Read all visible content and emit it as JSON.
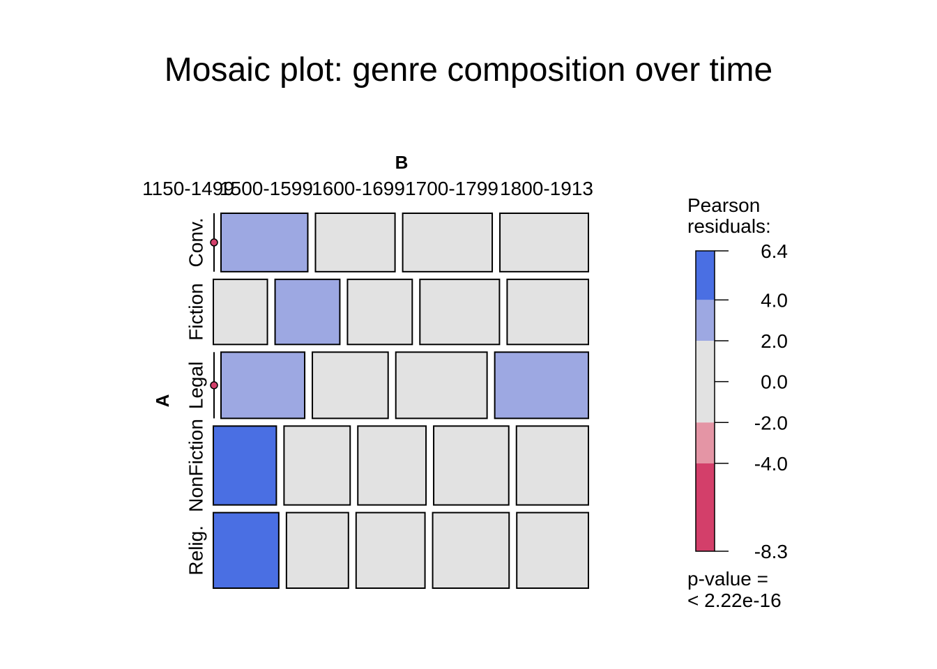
{
  "chart_data": {
    "type": "mosaic",
    "title": "Mosaic plot: genre composition over time",
    "column_variable": "B",
    "row_variable": "A",
    "columns": [
      "1150-1499",
      "1500-1599",
      "1600-1699",
      "1700-1799",
      "1800-1913"
    ],
    "rows": [
      "Conv.",
      "Fiction",
      "Legal",
      "NonFiction",
      "Relig."
    ],
    "row_shares": [
      0.157,
      0.175,
      0.178,
      0.212,
      0.203
    ],
    "cell_shares": [
      [
        0.0,
        0.252,
        0.231,
        0.26,
        0.257
      ],
      [
        0.157,
        0.188,
        0.188,
        0.231,
        0.236
      ],
      [
        0.0,
        0.243,
        0.22,
        0.265,
        0.272
      ],
      [
        0.183,
        0.192,
        0.198,
        0.218,
        0.209
      ],
      [
        0.19,
        0.18,
        0.2,
        0.222,
        0.208
      ]
    ],
    "residuals": [
      [
        0,
        3,
        0,
        0,
        0
      ],
      [
        0,
        3,
        0,
        0,
        0
      ],
      [
        0,
        3,
        0,
        0,
        3
      ],
      [
        6,
        0,
        0,
        0,
        0
      ],
      [
        6,
        0,
        0,
        0,
        0
      ]
    ],
    "legend": {
      "title": "Pearson\nresiduals:",
      "ticks": [
        "6.4",
        "4.0",
        "2.0",
        "0.0",
        "-2.0",
        "-4.0",
        "-8.3"
      ],
      "tick_values": [
        6.4,
        4.0,
        2.0,
        0.0,
        -2.0,
        -4.0,
        -8.3
      ],
      "bands": [
        {
          "from": 4.0,
          "to": 6.4,
          "color": "#4a6fe3"
        },
        {
          "from": 2.0,
          "to": 4.0,
          "color": "#9da8e2"
        },
        {
          "from": -2.0,
          "to": 2.0,
          "color": "#e2e2e2"
        },
        {
          "from": -4.0,
          "to": -2.0,
          "color": "#e495a5"
        },
        {
          "from": -8.3,
          "to": -4.0,
          "color": "#d33f6a"
        }
      ],
      "pvalue_label": "p-value =",
      "pvalue": "< 2.22e-16"
    },
    "colors": {
      "strong_positive": "#4a6fe3",
      "positive": "#9da8e2",
      "neutral": "#e2e2e2",
      "negative": "#e495a5",
      "strong_negative": "#d33f6a"
    }
  }
}
